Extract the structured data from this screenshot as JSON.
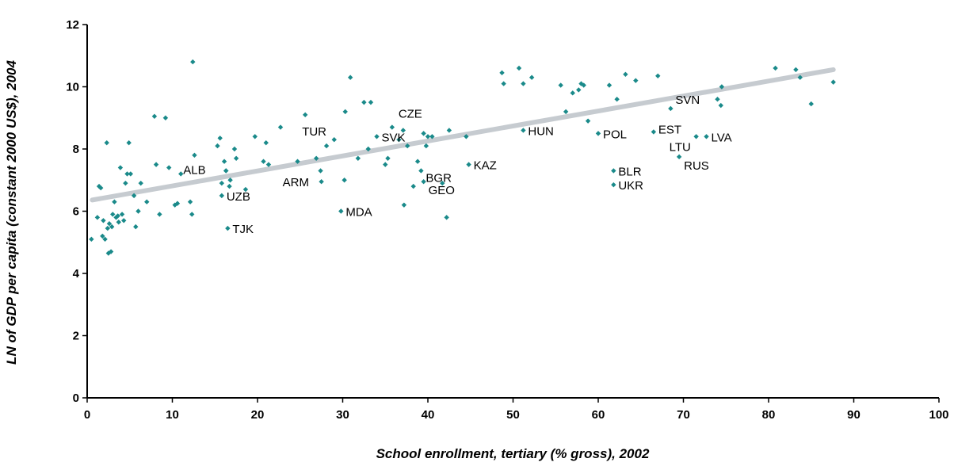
{
  "chart_data": {
    "type": "scatter",
    "xlabel": "School enrollment, tertiary (% gross), 2002",
    "ylabel": "LN of GDP per capita (constant 2000 US$), 2004",
    "xlim": [
      0,
      100
    ],
    "ylim": [
      0,
      12
    ],
    "xticks": [
      "0",
      "10",
      "20",
      "30",
      "40",
      "50",
      "60",
      "70",
      "80",
      "90",
      "100"
    ],
    "yticks": [
      "0",
      "2",
      "4",
      "6",
      "8",
      "10",
      "12"
    ],
    "grid": false,
    "legend": "none",
    "colors": {
      "points": "#1a8a8a",
      "trend": "#c6cbd0",
      "axis": "#000000"
    },
    "trendline": {
      "start": [
        0.6,
        6.36
      ],
      "end": [
        87.6,
        10.55
      ]
    },
    "points": [
      [
        0.5,
        5.1
      ],
      [
        1.2,
        5.8
      ],
      [
        1.4,
        6.8
      ],
      [
        1.6,
        6.75
      ],
      [
        1.8,
        5.2
      ],
      [
        1.9,
        5.7
      ],
      [
        2.1,
        5.1
      ],
      [
        2.3,
        8.2
      ],
      [
        2.4,
        5.45
      ],
      [
        2.5,
        4.65
      ],
      [
        2.6,
        5.6
      ],
      [
        2.8,
        4.7
      ],
      [
        2.9,
        5.5
      ],
      [
        3.0,
        5.9
      ],
      [
        3.2,
        6.3
      ],
      [
        3.4,
        5.8
      ],
      [
        3.6,
        5.85
      ],
      [
        3.7,
        5.65
      ],
      [
        3.9,
        7.4
      ],
      [
        4.1,
        5.9
      ],
      [
        4.3,
        5.7
      ],
      [
        4.5,
        6.9
      ],
      [
        4.7,
        7.2
      ],
      [
        4.9,
        8.2
      ],
      [
        5.1,
        7.2
      ],
      [
        5.5,
        6.5
      ],
      [
        5.7,
        5.5
      ],
      [
        6.0,
        6.0
      ],
      [
        6.3,
        6.9
      ],
      [
        7.0,
        6.3
      ],
      [
        7.9,
        9.05
      ],
      [
        8.1,
        7.5
      ],
      [
        8.5,
        5.9
      ],
      [
        9.2,
        9.0
      ],
      [
        9.6,
        7.4
      ],
      [
        10.3,
        6.2
      ],
      [
        10.6,
        6.25
      ],
      [
        11.0,
        7.2
      ],
      [
        12.1,
        6.3
      ],
      [
        12.3,
        5.9
      ],
      [
        12.4,
        10.8
      ],
      [
        12.6,
        7.8
      ],
      [
        15.3,
        8.1
      ],
      [
        15.6,
        8.35
      ],
      [
        15.8,
        6.9
      ],
      [
        16.1,
        7.6
      ],
      [
        16.3,
        7.3
      ],
      [
        16.7,
        6.8
      ],
      [
        16.8,
        7.0
      ],
      [
        17.3,
        8.0
      ],
      [
        17.5,
        7.7
      ],
      [
        18.6,
        6.7
      ],
      [
        19.7,
        8.4
      ],
      [
        20.7,
        7.6
      ],
      [
        21.0,
        8.2
      ],
      [
        21.3,
        7.5
      ],
      [
        22.7,
        8.7
      ],
      [
        24.7,
        7.6
      ],
      [
        26.9,
        7.7
      ],
      [
        27.4,
        7.3
      ],
      [
        28.1,
        8.1
      ],
      [
        29.0,
        8.3
      ],
      [
        30.2,
        7.0
      ],
      [
        30.3,
        9.2
      ],
      [
        30.9,
        10.3
      ],
      [
        31.8,
        7.7
      ],
      [
        32.5,
        9.5
      ],
      [
        33.0,
        8.0
      ],
      [
        33.3,
        9.5
      ],
      [
        35.0,
        7.5
      ],
      [
        35.3,
        7.7
      ],
      [
        35.8,
        8.7
      ],
      [
        36.6,
        8.3
      ],
      [
        37.2,
        6.2
      ],
      [
        37.6,
        8.1
      ],
      [
        38.3,
        6.8
      ],
      [
        38.8,
        7.6
      ],
      [
        39.5,
        8.5
      ],
      [
        39.8,
        8.1
      ],
      [
        40.0,
        8.4
      ],
      [
        40.5,
        8.4
      ],
      [
        41.7,
        6.9
      ],
      [
        42.2,
        5.8
      ],
      [
        42.5,
        8.6
      ],
      [
        44.5,
        8.4
      ],
      [
        48.7,
        10.45
      ],
      [
        48.9,
        10.1
      ],
      [
        50.7,
        10.6
      ],
      [
        51.2,
        10.1
      ],
      [
        52.2,
        10.3
      ],
      [
        55.6,
        10.05
      ],
      [
        56.2,
        9.2
      ],
      [
        57.0,
        9.8
      ],
      [
        57.7,
        9.9
      ],
      [
        58.0,
        10.1
      ],
      [
        58.3,
        10.05
      ],
      [
        58.8,
        8.9
      ],
      [
        61.3,
        10.05
      ],
      [
        62.2,
        9.6
      ],
      [
        63.2,
        10.4
      ],
      [
        64.4,
        10.2
      ],
      [
        67.0,
        10.35
      ],
      [
        74.0,
        9.6
      ],
      [
        74.4,
        9.4
      ],
      [
        74.5,
        10.0
      ],
      [
        80.8,
        10.6
      ],
      [
        83.2,
        10.55
      ],
      [
        83.7,
        10.3
      ],
      [
        85.0,
        9.45
      ],
      [
        87.6,
        10.15
      ]
    ],
    "labeled_points": [
      {
        "x": 16.3,
        "y": 7.3,
        "label": "ALB"
      },
      {
        "x": 15.8,
        "y": 6.5,
        "label": "UZB"
      },
      {
        "x": 16.5,
        "y": 5.45,
        "label": "TJK"
      },
      {
        "x": 25.6,
        "y": 9.1,
        "label": "TUR"
      },
      {
        "x": 27.5,
        "y": 6.95,
        "label": "ARM"
      },
      {
        "x": 29.8,
        "y": 6.0,
        "label": "MDA"
      },
      {
        "x": 37.1,
        "y": 8.6,
        "label": "CZE"
      },
      {
        "x": 34.0,
        "y": 8.4,
        "label": "SVK"
      },
      {
        "x": 39.2,
        "y": 7.3,
        "label": "BGR"
      },
      {
        "x": 39.5,
        "y": 6.95,
        "label": "GEO"
      },
      {
        "x": 44.8,
        "y": 7.5,
        "label": "KAZ"
      },
      {
        "x": 51.2,
        "y": 8.6,
        "label": "HUN"
      },
      {
        "x": 60.0,
        "y": 8.5,
        "label": "POL"
      },
      {
        "x": 66.5,
        "y": 8.55,
        "label": "EST"
      },
      {
        "x": 68.5,
        "y": 9.3,
        "label": "SVN"
      },
      {
        "x": 71.5,
        "y": 8.4,
        "label": "LTU"
      },
      {
        "x": 72.7,
        "y": 8.4,
        "label": "LVA"
      },
      {
        "x": 69.5,
        "y": 7.75,
        "label": "RUS"
      },
      {
        "x": 61.8,
        "y": 7.3,
        "label": "BLR"
      },
      {
        "x": 61.8,
        "y": 6.85,
        "label": "UKR"
      }
    ]
  }
}
